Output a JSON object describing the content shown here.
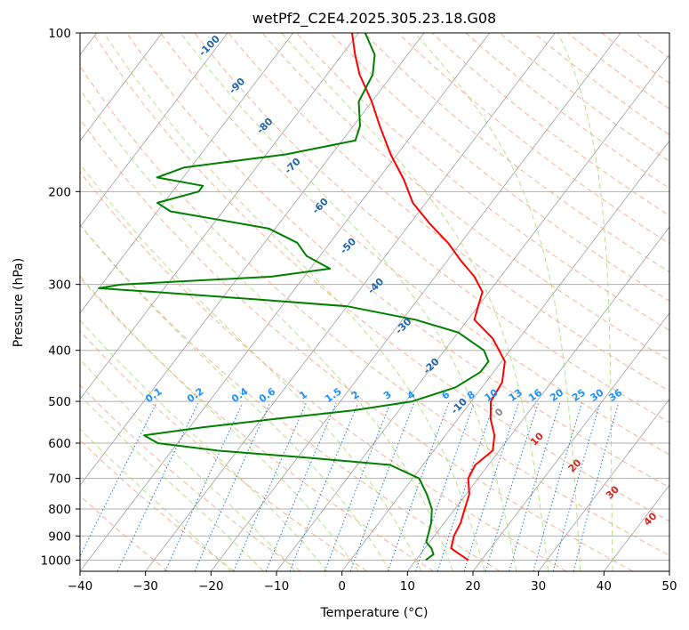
{
  "chart_data": {
    "type": "line",
    "title": "wetPf2_C2E4.2025.305.23.18.G08",
    "xlabel": "Temperature (°C)",
    "ylabel": "Pressure (hPa)",
    "xlim": [
      -40,
      50
    ],
    "ylim": [
      1050,
      100
    ],
    "y_scale": "log",
    "grid": true,
    "x_ticks": [
      -40,
      -30,
      -20,
      -10,
      0,
      10,
      20,
      30,
      40,
      50
    ],
    "y_ticks": [
      100,
      200,
      300,
      400,
      500,
      600,
      700,
      800,
      900,
      1000
    ],
    "isotherm_skew": true,
    "series": [
      {
        "color": "#ff0000",
        "points": [
          {
            "p": 1000,
            "t": 18
          },
          {
            "p": 975,
            "t": 16
          },
          {
            "p": 950,
            "t": 14
          },
          {
            "p": 925,
            "t": 13.5
          },
          {
            "p": 900,
            "t": 13
          },
          {
            "p": 850,
            "t": 12.5
          },
          {
            "p": 800,
            "t": 11.5
          },
          {
            "p": 750,
            "t": 10.5
          },
          {
            "p": 700,
            "t": 8.5
          },
          {
            "p": 660,
            "t": 8
          },
          {
            "p": 620,
            "t": 9
          },
          {
            "p": 580,
            "t": 7.5
          },
          {
            "p": 540,
            "t": 5
          },
          {
            "p": 500,
            "t": 3
          },
          {
            "p": 460,
            "t": 2.5
          },
          {
            "p": 420,
            "t": 0.5
          },
          {
            "p": 380,
            "t": -4
          },
          {
            "p": 350,
            "t": -9
          },
          {
            "p": 330,
            "t": -10
          },
          {
            "p": 310,
            "t": -11
          },
          {
            "p": 290,
            "t": -14
          },
          {
            "p": 270,
            "t": -18
          },
          {
            "p": 250,
            "t": -22
          },
          {
            "p": 230,
            "t": -27
          },
          {
            "p": 210,
            "t": -32
          },
          {
            "p": 190,
            "t": -36
          },
          {
            "p": 170,
            "t": -41
          },
          {
            "p": 150,
            "t": -46
          },
          {
            "p": 135,
            "t": -50
          },
          {
            "p": 120,
            "t": -55
          },
          {
            "p": 110,
            "t": -58
          },
          {
            "p": 100,
            "t": -61
          }
        ]
      },
      {
        "color": "#008000",
        "points": [
          {
            "p": 1000,
            "t": 11.5
          },
          {
            "p": 975,
            "t": 12
          },
          {
            "p": 950,
            "t": 11
          },
          {
            "p": 925,
            "t": 9.5
          },
          {
            "p": 900,
            "t": 9
          },
          {
            "p": 850,
            "t": 8
          },
          {
            "p": 800,
            "t": 6.5
          },
          {
            "p": 750,
            "t": 4
          },
          {
            "p": 700,
            "t": 1
          },
          {
            "p": 660,
            "t": -5
          },
          {
            "p": 640,
            "t": -18
          },
          {
            "p": 620,
            "t": -33
          },
          {
            "p": 600,
            "t": -43
          },
          {
            "p": 580,
            "t": -46
          },
          {
            "p": 560,
            "t": -38
          },
          {
            "p": 540,
            "t": -28
          },
          {
            "p": 520,
            "t": -17
          },
          {
            "p": 500,
            "t": -9
          },
          {
            "p": 470,
            "t": -4
          },
          {
            "p": 440,
            "t": -2
          },
          {
            "p": 420,
            "t": -2
          },
          {
            "p": 400,
            "t": -4
          },
          {
            "p": 370,
            "t": -10
          },
          {
            "p": 350,
            "t": -18
          },
          {
            "p": 330,
            "t": -30
          },
          {
            "p": 320,
            "t": -45
          },
          {
            "p": 310,
            "t": -61
          },
          {
            "p": 305,
            "t": -70
          },
          {
            "p": 300,
            "t": -67
          },
          {
            "p": 290,
            "t": -45
          },
          {
            "p": 280,
            "t": -37
          },
          {
            "p": 265,
            "t": -42
          },
          {
            "p": 250,
            "t": -45
          },
          {
            "p": 235,
            "t": -51
          },
          {
            "p": 218,
            "t": -68
          },
          {
            "p": 210,
            "t": -71
          },
          {
            "p": 200,
            "t": -66
          },
          {
            "p": 195,
            "t": -66
          },
          {
            "p": 188,
            "t": -74
          },
          {
            "p": 180,
            "t": -71
          },
          {
            "p": 170,
            "t": -57
          },
          {
            "p": 160,
            "t": -48
          },
          {
            "p": 150,
            "t": -49
          },
          {
            "p": 135,
            "t": -52
          },
          {
            "p": 120,
            "t": -53
          },
          {
            "p": 110,
            "t": -55
          },
          {
            "p": 100,
            "t": -59
          }
        ]
      }
    ],
    "moist_adiabat_labels": [
      "-100",
      "-90",
      "-80",
      "-70",
      "-60",
      "-50",
      "-40",
      "-30",
      "-20",
      "-10"
    ],
    "mixing_ratio_labels": [
      "0.1",
      "0.2",
      "0.4",
      "0.6",
      "1",
      "1.5",
      "2",
      "3",
      "4",
      "6",
      "8",
      "10",
      "13",
      "16",
      "20",
      "25",
      "30",
      "36"
    ],
    "dry_adiabat_labels": [
      "0",
      "10",
      "20",
      "30",
      "40"
    ],
    "colors": {
      "dry_adiabat": "#f4a582",
      "moist_adiabat": "#a6d96a",
      "mixing_ratio": "#1f78d4",
      "isotherm": "#a0a0a0",
      "moist_label": "#2166ac",
      "mixing_label": "#1e90ff",
      "dry_label": "#d62728"
    }
  }
}
